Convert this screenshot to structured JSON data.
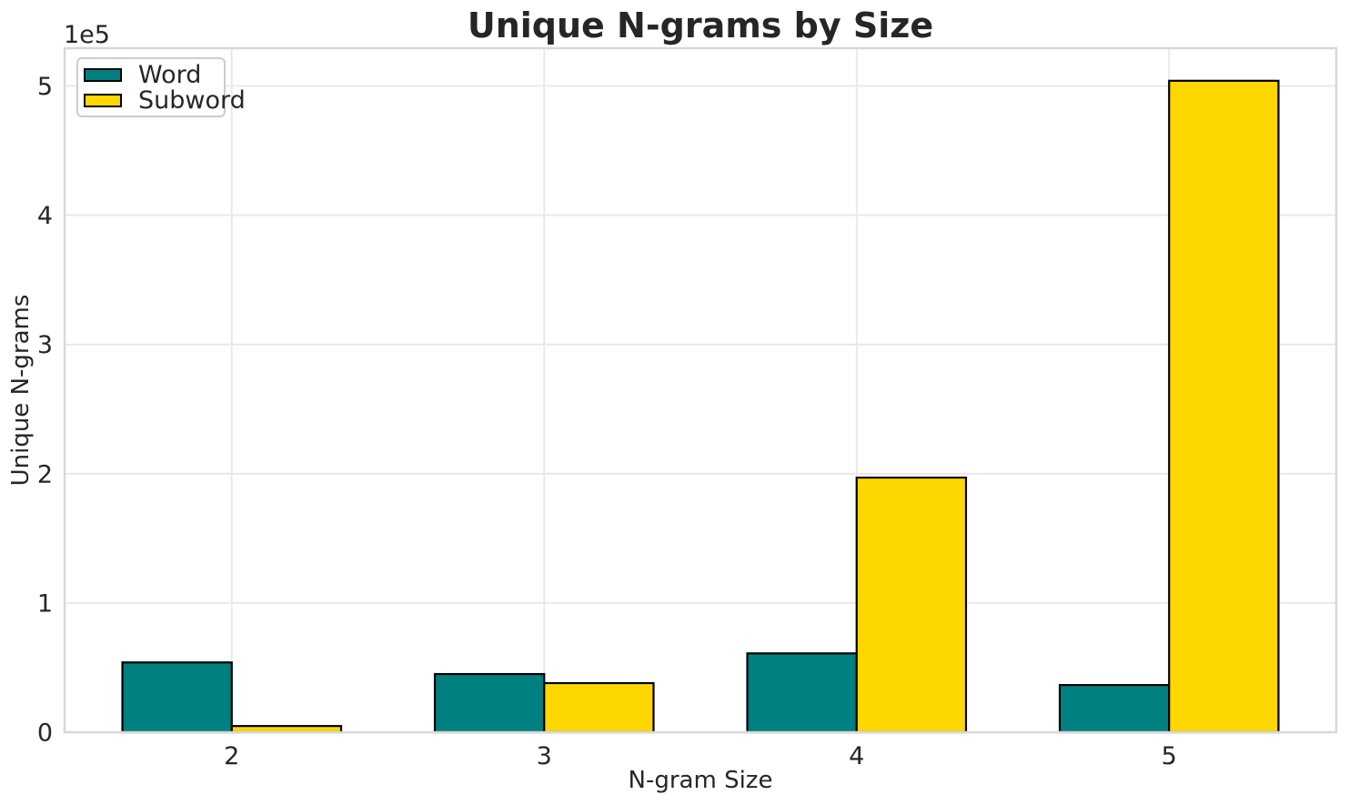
{
  "chart_data": {
    "type": "bar",
    "title": "Unique N-grams by Size",
    "xlabel": "N-gram Size",
    "ylabel": "Unique N-grams",
    "y_offset_text": "1e5",
    "categories": [
      "2",
      "3",
      "4",
      "5"
    ],
    "category_positions": [
      2,
      3,
      4,
      5
    ],
    "series": [
      {
        "name": "Word",
        "color": "#008080",
        "values": [
          54000,
          45000,
          61000,
          36500
        ]
      },
      {
        "name": "Subword",
        "color": "#FFD700",
        "values": [
          4800,
          38000,
          197000,
          504000
        ]
      }
    ],
    "bar_width": 0.35,
    "bar_edge_color": "#000000",
    "xlim": [
      1.465,
      5.535
    ],
    "ylim": [
      0,
      529200
    ],
    "yticks": [
      0,
      100000,
      200000,
      300000,
      400000,
      500000
    ],
    "ytick_labels": [
      "0",
      "1",
      "2",
      "3",
      "4",
      "5"
    ],
    "grid": true,
    "legend_position": "upper-left"
  },
  "colors": {
    "background": "#FFFFFF",
    "grid": "#E7E7E7",
    "spine": "#D8D8D8",
    "text": "#262626"
  }
}
